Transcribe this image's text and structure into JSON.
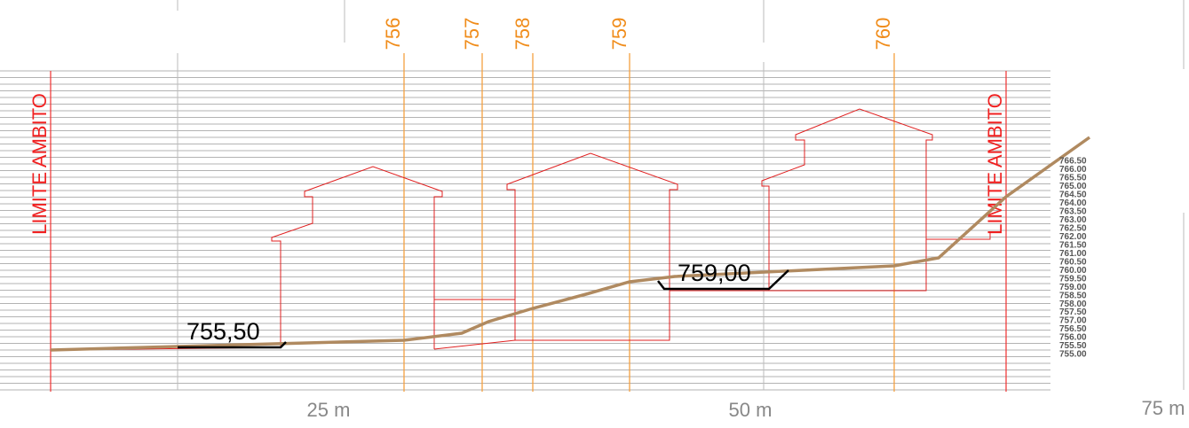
{
  "limit_labels": [
    "LIMITE AMBITO",
    "LIMITE AMBITO"
  ],
  "sections": [
    "756",
    "757",
    "758",
    "759",
    "760"
  ],
  "elevations": [
    "766.50",
    "766.00",
    "765.50",
    "765.00",
    "764.50",
    "764.00",
    "763.50",
    "763.00",
    "762.50",
    "762.00",
    "761.50",
    "761.00",
    "760.50",
    "760.00",
    "759.50",
    "759.00",
    "758.50",
    "758.00",
    "757.50",
    "757.00",
    "756.50",
    "756.00",
    "755.50",
    "755.00"
  ],
  "levels": [
    "755,50",
    "759,00"
  ],
  "axis_labels": [
    "25 m",
    "50 m",
    "75 m"
  ]
}
